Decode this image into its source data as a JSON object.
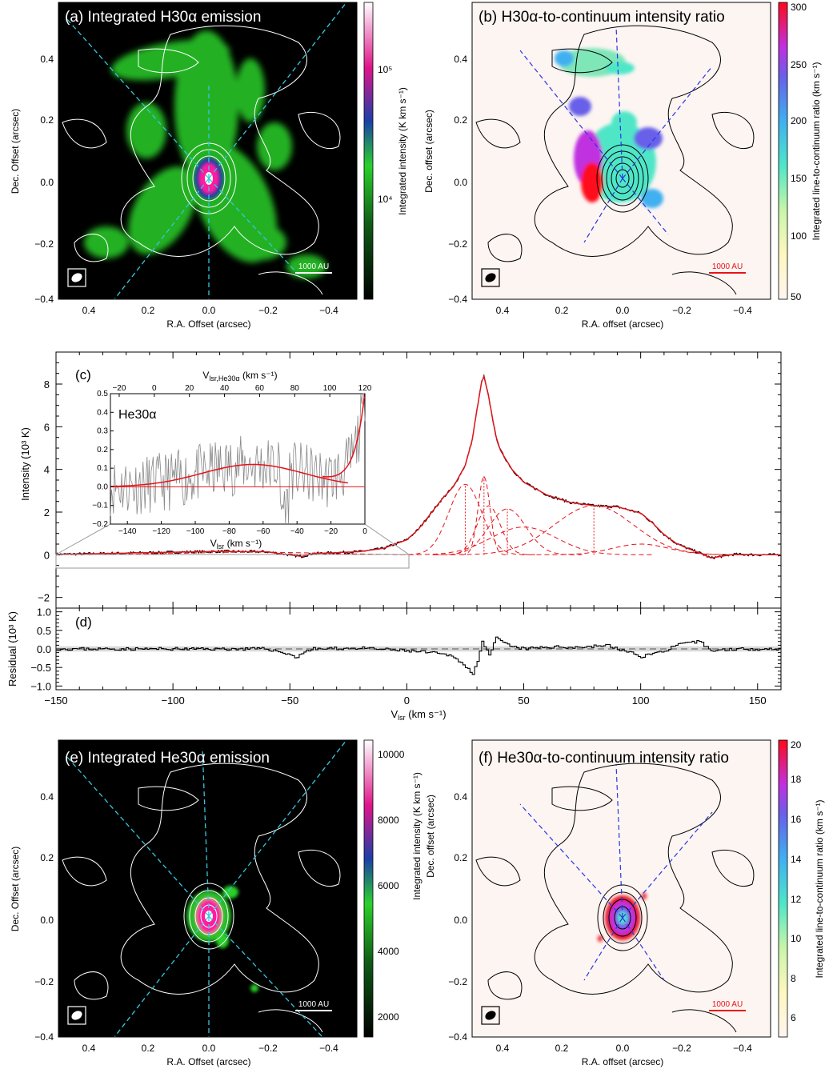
{
  "colors": {
    "map_bg": "#000000",
    "ratio_bg": "#fdf5f2",
    "green": "#2bd12b",
    "magenta": "#ff1aa0",
    "white_contour": "#ffffff",
    "black_contour": "#000000",
    "cyan_dash": "#35c6e0",
    "blue_dash": "#2a35e0",
    "red": "#e8121a",
    "spectrum": "#000000",
    "residual_band": "#d8d8d8"
  },
  "panels": {
    "a": {
      "title": "(a) Integrated H30α emission",
      "xlabel": "R.A. Offset (arcsec)",
      "ylabel": "Dec. Offset (arcsec)",
      "xticks": [
        "0.4",
        "0.2",
        "0.0",
        "−0.2",
        "−0.4"
      ],
      "yticks": [
        "0.4",
        "0.2",
        "0.0",
        "−0.2",
        "−0.4"
      ],
      "scalebar": "1000 AU",
      "colorbar_label": "Integrated intensity (K km s⁻¹)",
      "colorbar_ticks": [
        "10⁵",
        "10⁴"
      ],
      "colorbar_scale": "log"
    },
    "b": {
      "title": "(b) H30α-to-continuum intensity ratio",
      "xlabel": "R.A. offset (arcsec)",
      "ylabel": "Dec. offset (arcsec)",
      "xticks": [
        "0.4",
        "0.2",
        "0.0",
        "−0.2",
        "−0.4"
      ],
      "yticks": [
        "0.4",
        "0.2",
        "0.0",
        "−0.2",
        "−0.4"
      ],
      "scalebar": "1000 AU",
      "colorbar_label": "Integrated line-to-continuum ratio (km s⁻¹)",
      "colorbar_ticks": [
        "300",
        "250",
        "200",
        "150",
        "100",
        "50"
      ],
      "colorbar_range": [
        50,
        300
      ]
    },
    "e": {
      "title": "(e) Integrated He30α emission",
      "xlabel": "R.A. Offset (arcsec)",
      "ylabel": "Dec. Offset (arcsec)",
      "xticks": [
        "0.4",
        "0.2",
        "0.0",
        "−0.2",
        "−0.4"
      ],
      "yticks": [
        "0.4",
        "0.2",
        "0.0",
        "−0.2",
        "−0.4"
      ],
      "scalebar": "1000 AU",
      "colorbar_label": "Integrated intensity (K km s⁻¹)",
      "colorbar_ticks": [
        "10000",
        "8000",
        "6000",
        "4000",
        "2000"
      ],
      "colorbar_range": [
        1500,
        10500
      ]
    },
    "f": {
      "title": "(f) He30α-to-continuum intensity ratio",
      "xlabel": "R.A. offset (arcsec)",
      "ylabel": "Dec. offset (arcsec)",
      "xticks": [
        "0.4",
        "0.2",
        "0.0",
        "−0.2",
        "−0.4"
      ],
      "yticks": [
        "0.4",
        "0.2",
        "0.0",
        "−0.2",
        "−0.4"
      ],
      "scalebar": "1000 AU",
      "colorbar_label": "Integrated line-to-continuum ratio (km s⁻¹)",
      "colorbar_ticks": [
        "20",
        "18",
        "16",
        "14",
        "12",
        "10",
        "8",
        "6"
      ],
      "colorbar_range": [
        5,
        20
      ]
    },
    "c": {
      "tag": "(c)",
      "ylabel": "Intensity (10³ K)",
      "yticks": [
        "8",
        "6",
        "4",
        "2",
        "0",
        "−2"
      ],
      "inset_label": "He30α",
      "inset_top_label": "V",
      "inset_top_label_sub": "lsr,He30α",
      "inset_top_label_unit": " (km s⁻¹)",
      "inset_xlabel": "V",
      "inset_xlabel_sub": "lsr",
      "inset_xlabel_unit": " (km s⁻¹)"
    },
    "d": {
      "tag": "(d)",
      "ylabel": "Residual (10³ K)",
      "yticks": [
        "1.0",
        "0.5",
        "0.0",
        "−0.5",
        "−1.0"
      ],
      "xticks": [
        "−150",
        "−100",
        "−50",
        "0",
        "50",
        "100",
        "150"
      ],
      "xlabel": "V",
      "xlabel_sub": "lsr",
      "xlabel_unit": " (km s⁻¹)"
    }
  },
  "chart_data": [
    {
      "type": "heatmap",
      "panel": "a",
      "title": "(a) Integrated H30α emission",
      "xlim": [
        0.5,
        -0.5
      ],
      "ylim": [
        -0.4,
        0.55
      ],
      "scale": "log",
      "peak_position": [
        0.0,
        0.0
      ],
      "colorbar": {
        "ticks": [
          "10⁵",
          "10⁴"
        ]
      }
    },
    {
      "type": "heatmap",
      "panel": "b",
      "title": "(b) H30α-to-continuum intensity ratio",
      "xlim": [
        0.5,
        -0.5
      ],
      "ylim": [
        -0.4,
        0.55
      ],
      "colorbar": {
        "min": 50,
        "max": 300,
        "ticks": [
          300,
          250,
          200,
          150,
          100,
          50
        ]
      }
    },
    {
      "type": "line",
      "panel": "c",
      "xlabel": "Vlsr (km s⁻¹)",
      "ylabel": "Intensity (10³ K)",
      "xlim": [
        -150,
        160
      ],
      "ylim": [
        -2.5,
        9.5
      ],
      "series": [
        {
          "x": [
            -150,
            -140,
            -120,
            -100,
            -80,
            -60,
            -45,
            -40,
            -30,
            -20,
            -10,
            0,
            5,
            10,
            15,
            20,
            25,
            28,
            30,
            32,
            33,
            35,
            38,
            40,
            45,
            50,
            60,
            70,
            80,
            90,
            100,
            105,
            110,
            115,
            120,
            125,
            130,
            140,
            150,
            160
          ],
          "values": [
            0.02,
            0.04,
            0.08,
            0.12,
            0.16,
            0.14,
            -0.08,
            0.06,
            0.1,
            0.15,
            0.3,
            0.7,
            1.2,
            1.9,
            2.6,
            3.2,
            4.2,
            5.4,
            6.8,
            8.1,
            8.35,
            7.4,
            5.6,
            4.9,
            4.0,
            3.4,
            2.8,
            2.45,
            2.3,
            2.25,
            1.95,
            1.5,
            0.95,
            0.55,
            0.3,
            0.1,
            -0.15,
            0.02,
            0.0,
            0.0
          ]
        }
      ],
      "components": [
        {
          "center": 25,
          "peak": 3.3
        },
        {
          "center": 33,
          "peak": 3.7
        },
        {
          "center": 35,
          "peak": 2.3
        },
        {
          "center": 43,
          "peak": 2.15
        },
        {
          "center": 50,
          "peak": 1.3
        },
        {
          "center": 80,
          "peak": 2.3
        },
        {
          "center": 100,
          "peak": 0.5
        }
      ],
      "dotted_lines_at": [
        25,
        33,
        43,
        80
      ],
      "inset": {
        "label": "He30α",
        "xlim": [
          -150,
          0
        ],
        "ylim": [
          -0.2,
          0.5
        ],
        "top_xlim": [
          -25,
          120
        ],
        "xticks": [
          -140,
          -120,
          -100,
          -80,
          -60,
          -40,
          -20,
          0
        ],
        "yticks": [
          -0.2,
          -0.1,
          0.0,
          0.1,
          0.2,
          0.3,
          0.4,
          0.5
        ],
        "top_xticks": [
          -20,
          0,
          20,
          40,
          60,
          80,
          100,
          120
        ],
        "gaussian": {
          "center": -66,
          "peak": 0.12,
          "fwhm": 70
        }
      }
    },
    {
      "type": "line",
      "panel": "d",
      "xlabel": "Vlsr (km s⁻¹)",
      "ylabel": "Residual (10³ K)",
      "xlim": [
        -150,
        160
      ],
      "ylim": [
        -1.1,
        1.1
      ],
      "series": [
        {
          "x": [
            -150,
            -100,
            -60,
            -50,
            -48,
            -45,
            -40,
            -20,
            0,
            10,
            20,
            25,
            28,
            30,
            32,
            35,
            38,
            40,
            45,
            50,
            60,
            75,
            85,
            90,
            100,
            110,
            115,
            120,
            125,
            130,
            140,
            150,
            160
          ],
          "values": [
            0.0,
            0.0,
            0.0,
            -0.15,
            -0.25,
            -0.1,
            0.0,
            0.02,
            -0.05,
            -0.1,
            -0.2,
            -0.5,
            -0.65,
            -0.3,
            0.2,
            -0.2,
            0.3,
            0.2,
            0.05,
            0.0,
            0.05,
            0.05,
            0.1,
            0.0,
            -0.2,
            -0.05,
            0.1,
            0.15,
            0.2,
            -0.05,
            0.0,
            0.0,
            0.0
          ]
        }
      ]
    },
    {
      "type": "heatmap",
      "panel": "e",
      "title": "(e) Integrated He30α emission",
      "xlim": [
        0.5,
        -0.5
      ],
      "ylim": [
        -0.4,
        0.55
      ],
      "colorbar": {
        "min": 1500,
        "max": 10500,
        "ticks": [
          10000,
          8000,
          6000,
          4000,
          2000
        ]
      }
    },
    {
      "type": "heatmap",
      "panel": "f",
      "title": "(f) He30α-to-continuum intensity ratio",
      "xlim": [
        0.5,
        -0.5
      ],
      "ylim": [
        -0.4,
        0.55
      ],
      "colorbar": {
        "min": 5,
        "max": 20,
        "ticks": [
          20,
          18,
          16,
          14,
          12,
          10,
          8,
          6
        ]
      }
    }
  ]
}
